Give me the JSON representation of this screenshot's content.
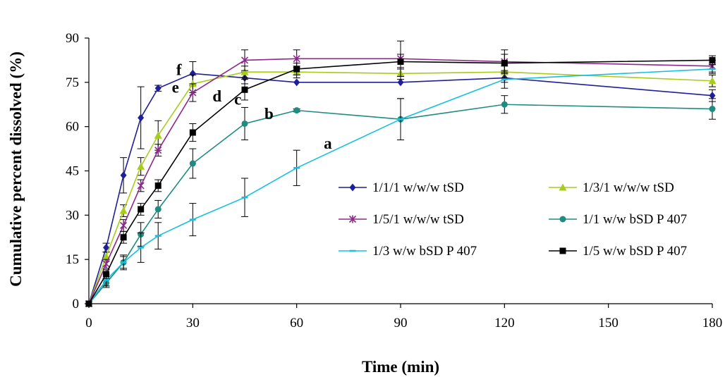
{
  "chart_data": {
    "type": "line",
    "xlabel": "Time (min)",
    "ylabel": "Cumulative percent dissolved (%)",
    "xlim": [
      0,
      180
    ],
    "ylim": [
      0,
      90
    ],
    "x_ticks": [
      0,
      30,
      60,
      90,
      120,
      150,
      180
    ],
    "y_ticks": [
      0,
      15,
      30,
      45,
      60,
      75,
      90
    ],
    "grid": false,
    "legend_position": "center-right",
    "series": [
      {
        "name": "1/1/1 w/w/w tSD",
        "color": "#1f1f9a",
        "marker": "diamond",
        "x": [
          0,
          5,
          10,
          15,
          20,
          30,
          45,
          60,
          90,
          120,
          180
        ],
        "y": [
          0,
          19,
          43.5,
          63,
          73,
          78,
          76.5,
          75,
          75,
          76.5,
          70.5
        ],
        "err": [
          0,
          1.5,
          6,
          10.5,
          1,
          4,
          2,
          0,
          0,
          1.5,
          2
        ]
      },
      {
        "name": "1/3/1 w/w/w tSD",
        "color": "#a8cc1a",
        "marker": "triangle",
        "x": [
          0,
          5,
          10,
          15,
          20,
          30,
          45,
          60,
          90,
          120,
          180
        ],
        "y": [
          0,
          16,
          31.5,
          46.5,
          57,
          74.5,
          78.5,
          78.5,
          78,
          78.5,
          75.5
        ],
        "err": [
          0,
          1.5,
          2,
          3,
          5,
          3,
          2,
          2,
          2,
          2,
          2
        ]
      },
      {
        "name": "1/5/1 w/w/w tSD",
        "color": "#8b2a8b",
        "marker": "star",
        "x": [
          0,
          5,
          10,
          15,
          20,
          30,
          45,
          60,
          90,
          120,
          180
        ],
        "y": [
          0,
          13.5,
          26.5,
          40,
          52,
          71.5,
          82.5,
          83,
          83,
          82,
          80.5
        ],
        "err": [
          0,
          1.5,
          2,
          2,
          2,
          3,
          3.5,
          3,
          6,
          4,
          2
        ]
      },
      {
        "name": "1/1 w/w bSD P 407",
        "color": "#1e8c80",
        "marker": "circle",
        "x": [
          0,
          5,
          10,
          15,
          20,
          30,
          45,
          60,
          90,
          120,
          180
        ],
        "y": [
          0,
          7,
          14,
          23.5,
          32,
          47.5,
          61,
          65.5,
          62.5,
          67.5,
          66
        ],
        "err": [
          0,
          1.5,
          2,
          4,
          3,
          5,
          5.5,
          0.5,
          7,
          3,
          3.5
        ]
      },
      {
        "name": "1/3 w/w bSD P 407",
        "color": "#18c0e0",
        "marker": "dash",
        "x": [
          0,
          5,
          10,
          15,
          20,
          30,
          45,
          60,
          90,
          120,
          180
        ],
        "y": [
          0,
          8,
          14,
          19,
          23,
          28.5,
          36,
          46,
          62.5,
          76,
          79.5
        ],
        "err": [
          0,
          2,
          2.5,
          5,
          4.5,
          5.5,
          6.5,
          6,
          7,
          3,
          1.5
        ]
      },
      {
        "name": "1/5 w/w bSD P 407",
        "color": "#000000",
        "marker": "square",
        "x": [
          0,
          5,
          10,
          15,
          20,
          30,
          45,
          60,
          90,
          120,
          180
        ],
        "y": [
          0,
          10,
          22.5,
          32,
          40,
          58,
          72.5,
          79.5,
          82,
          81.5,
          82.5
        ],
        "err": [
          0,
          1.5,
          2,
          2,
          2,
          3,
          3.5,
          2,
          2.5,
          3,
          1.5
        ]
      }
    ],
    "annotations": [
      {
        "text": "a",
        "x": 69,
        "y": 52.5
      },
      {
        "text": "b",
        "x": 52,
        "y": 62.5
      },
      {
        "text": "c",
        "x": 43,
        "y": 67.5
      },
      {
        "text": "d",
        "x": 37,
        "y": 68.5
      },
      {
        "text": "e",
        "x": 25,
        "y": 71.5
      },
      {
        "text": "f",
        "x": 26,
        "y": 77.5
      }
    ]
  }
}
